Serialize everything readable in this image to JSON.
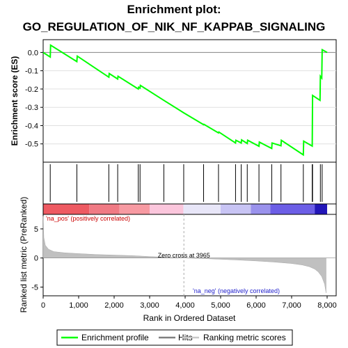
{
  "chart_data": {
    "type": "line",
    "title_line1": "Enrichment plot:",
    "title_line2": "GO_REGULATION_OF_NIK_NF_KAPPAB_SIGNALING",
    "ylabel_top": "Enrichment score (ES)",
    "ylabel_bottom": "Ranked list metric (PreRanked)",
    "xlabel": "Rank in Ordered Dataset",
    "xlim": [
      0,
      8000
    ],
    "x_ticks": [
      0,
      1000,
      2000,
      3000,
      4000,
      5000,
      6000,
      7000,
      8000
    ],
    "x_tick_labels": [
      "0",
      "1,000",
      "2,000",
      "3,000",
      "4,000",
      "5,000",
      "6,000",
      "7,000",
      "8,000"
    ],
    "es_ylim": [
      -0.6,
      0.07
    ],
    "es_ticks": [
      0.0,
      -0.1,
      -0.2,
      -0.3,
      -0.4,
      -0.5
    ],
    "es_tick_labels": [
      "0.0",
      "-0.1",
      "-0.2",
      "-0.3",
      "-0.4",
      "-0.5"
    ],
    "metric_ylim": [
      -6.5,
      7.5
    ],
    "metric_ticks": [
      5,
      0,
      -5
    ],
    "metric_tick_labels": [
      "5",
      "0",
      "-5"
    ],
    "es_points": [
      [
        0,
        0.0
      ],
      [
        200,
        -0.025
      ],
      [
        210,
        0.04
      ],
      [
        950,
        -0.05
      ],
      [
        960,
        -0.02
      ],
      [
        1850,
        -0.135
      ],
      [
        1860,
        -0.115
      ],
      [
        2100,
        -0.145
      ],
      [
        2110,
        -0.13
      ],
      [
        2680,
        -0.2
      ],
      [
        2690,
        -0.19
      ],
      [
        2730,
        -0.195
      ],
      [
        2740,
        -0.18
      ],
      [
        3400,
        -0.262
      ],
      [
        3960,
        -0.33
      ],
      [
        4520,
        -0.395
      ],
      [
        4530,
        -0.393
      ],
      [
        4940,
        -0.44
      ],
      [
        4950,
        -0.435
      ],
      [
        5420,
        -0.495
      ],
      [
        5430,
        -0.48
      ],
      [
        5580,
        -0.495
      ],
      [
        5590,
        -0.478
      ],
      [
        5750,
        -0.498
      ],
      [
        5760,
        -0.48
      ],
      [
        6080,
        -0.513
      ],
      [
        6090,
        -0.49
      ],
      [
        6440,
        -0.525
      ],
      [
        6450,
        -0.495
      ],
      [
        6700,
        -0.51
      ],
      [
        6710,
        -0.48
      ],
      [
        7330,
        -0.56
      ],
      [
        7340,
        -0.485
      ],
      [
        7580,
        -0.512
      ],
      [
        7590,
        -0.235
      ],
      [
        7800,
        -0.262
      ],
      [
        7810,
        -0.13
      ],
      [
        7850,
        -0.14
      ],
      [
        7860,
        0.015
      ],
      [
        8000,
        0.0
      ]
    ],
    "hits": [
      200,
      950,
      1850,
      2100,
      2680,
      2730,
      3400,
      3960,
      4520,
      4940,
      5420,
      5580,
      5750,
      6080,
      6440,
      6700,
      7330,
      7580,
      7590,
      7810,
      7860
    ],
    "color_bands": [
      {
        "from": 0,
        "to": 1300,
        "color": "#ee5a62"
      },
      {
        "from": 1300,
        "to": 2150,
        "color": "#f07a84"
      },
      {
        "from": 2150,
        "to": 3000,
        "color": "#f79aa2"
      },
      {
        "from": 3000,
        "to": 3950,
        "color": "#fbc6dc"
      },
      {
        "from": 3950,
        "to": 5000,
        "color": "#e8e6f8"
      },
      {
        "from": 5000,
        "to": 5850,
        "color": "#c8c4f4"
      },
      {
        "from": 5850,
        "to": 6400,
        "color": "#9a92ec"
      },
      {
        "from": 6400,
        "to": 7650,
        "color": "#6c5ee6"
      },
      {
        "from": 7650,
        "to": 8000,
        "color": "#2216b8"
      }
    ],
    "zero_cross_label": "Zero cross at 3965",
    "zero_cross_x": 3965,
    "pos_label": "'na_pos' (positively correlated)",
    "neg_label": "'na_neg' (negatively correlated)",
    "metric_curve": [
      [
        0,
        7.2
      ],
      [
        20,
        3.5
      ],
      [
        60,
        2.2
      ],
      [
        150,
        1.5
      ],
      [
        300,
        1.1
      ],
      [
        600,
        0.9
      ],
      [
        1000,
        0.75
      ],
      [
        1500,
        0.6
      ],
      [
        2000,
        0.5
      ],
      [
        2500,
        0.4
      ],
      [
        3000,
        0.25
      ],
      [
        3500,
        0.12
      ],
      [
        3965,
        0.0
      ],
      [
        4500,
        -0.1
      ],
      [
        5000,
        -0.22
      ],
      [
        5500,
        -0.35
      ],
      [
        6000,
        -0.5
      ],
      [
        6500,
        -0.7
      ],
      [
        7000,
        -0.95
      ],
      [
        7300,
        -1.2
      ],
      [
        7500,
        -1.5
      ],
      [
        7650,
        -1.9
      ],
      [
        7750,
        -2.4
      ],
      [
        7850,
        -3.2
      ],
      [
        7930,
        -4.5
      ],
      [
        7970,
        -6.0
      ]
    ],
    "legend": [
      {
        "label": "Enrichment profile",
        "color": "#00ff00"
      },
      {
        "label": "Hits",
        "color": "#000000"
      },
      {
        "label": "Ranking metric scores",
        "color": "#c0c0c0"
      }
    ]
  }
}
